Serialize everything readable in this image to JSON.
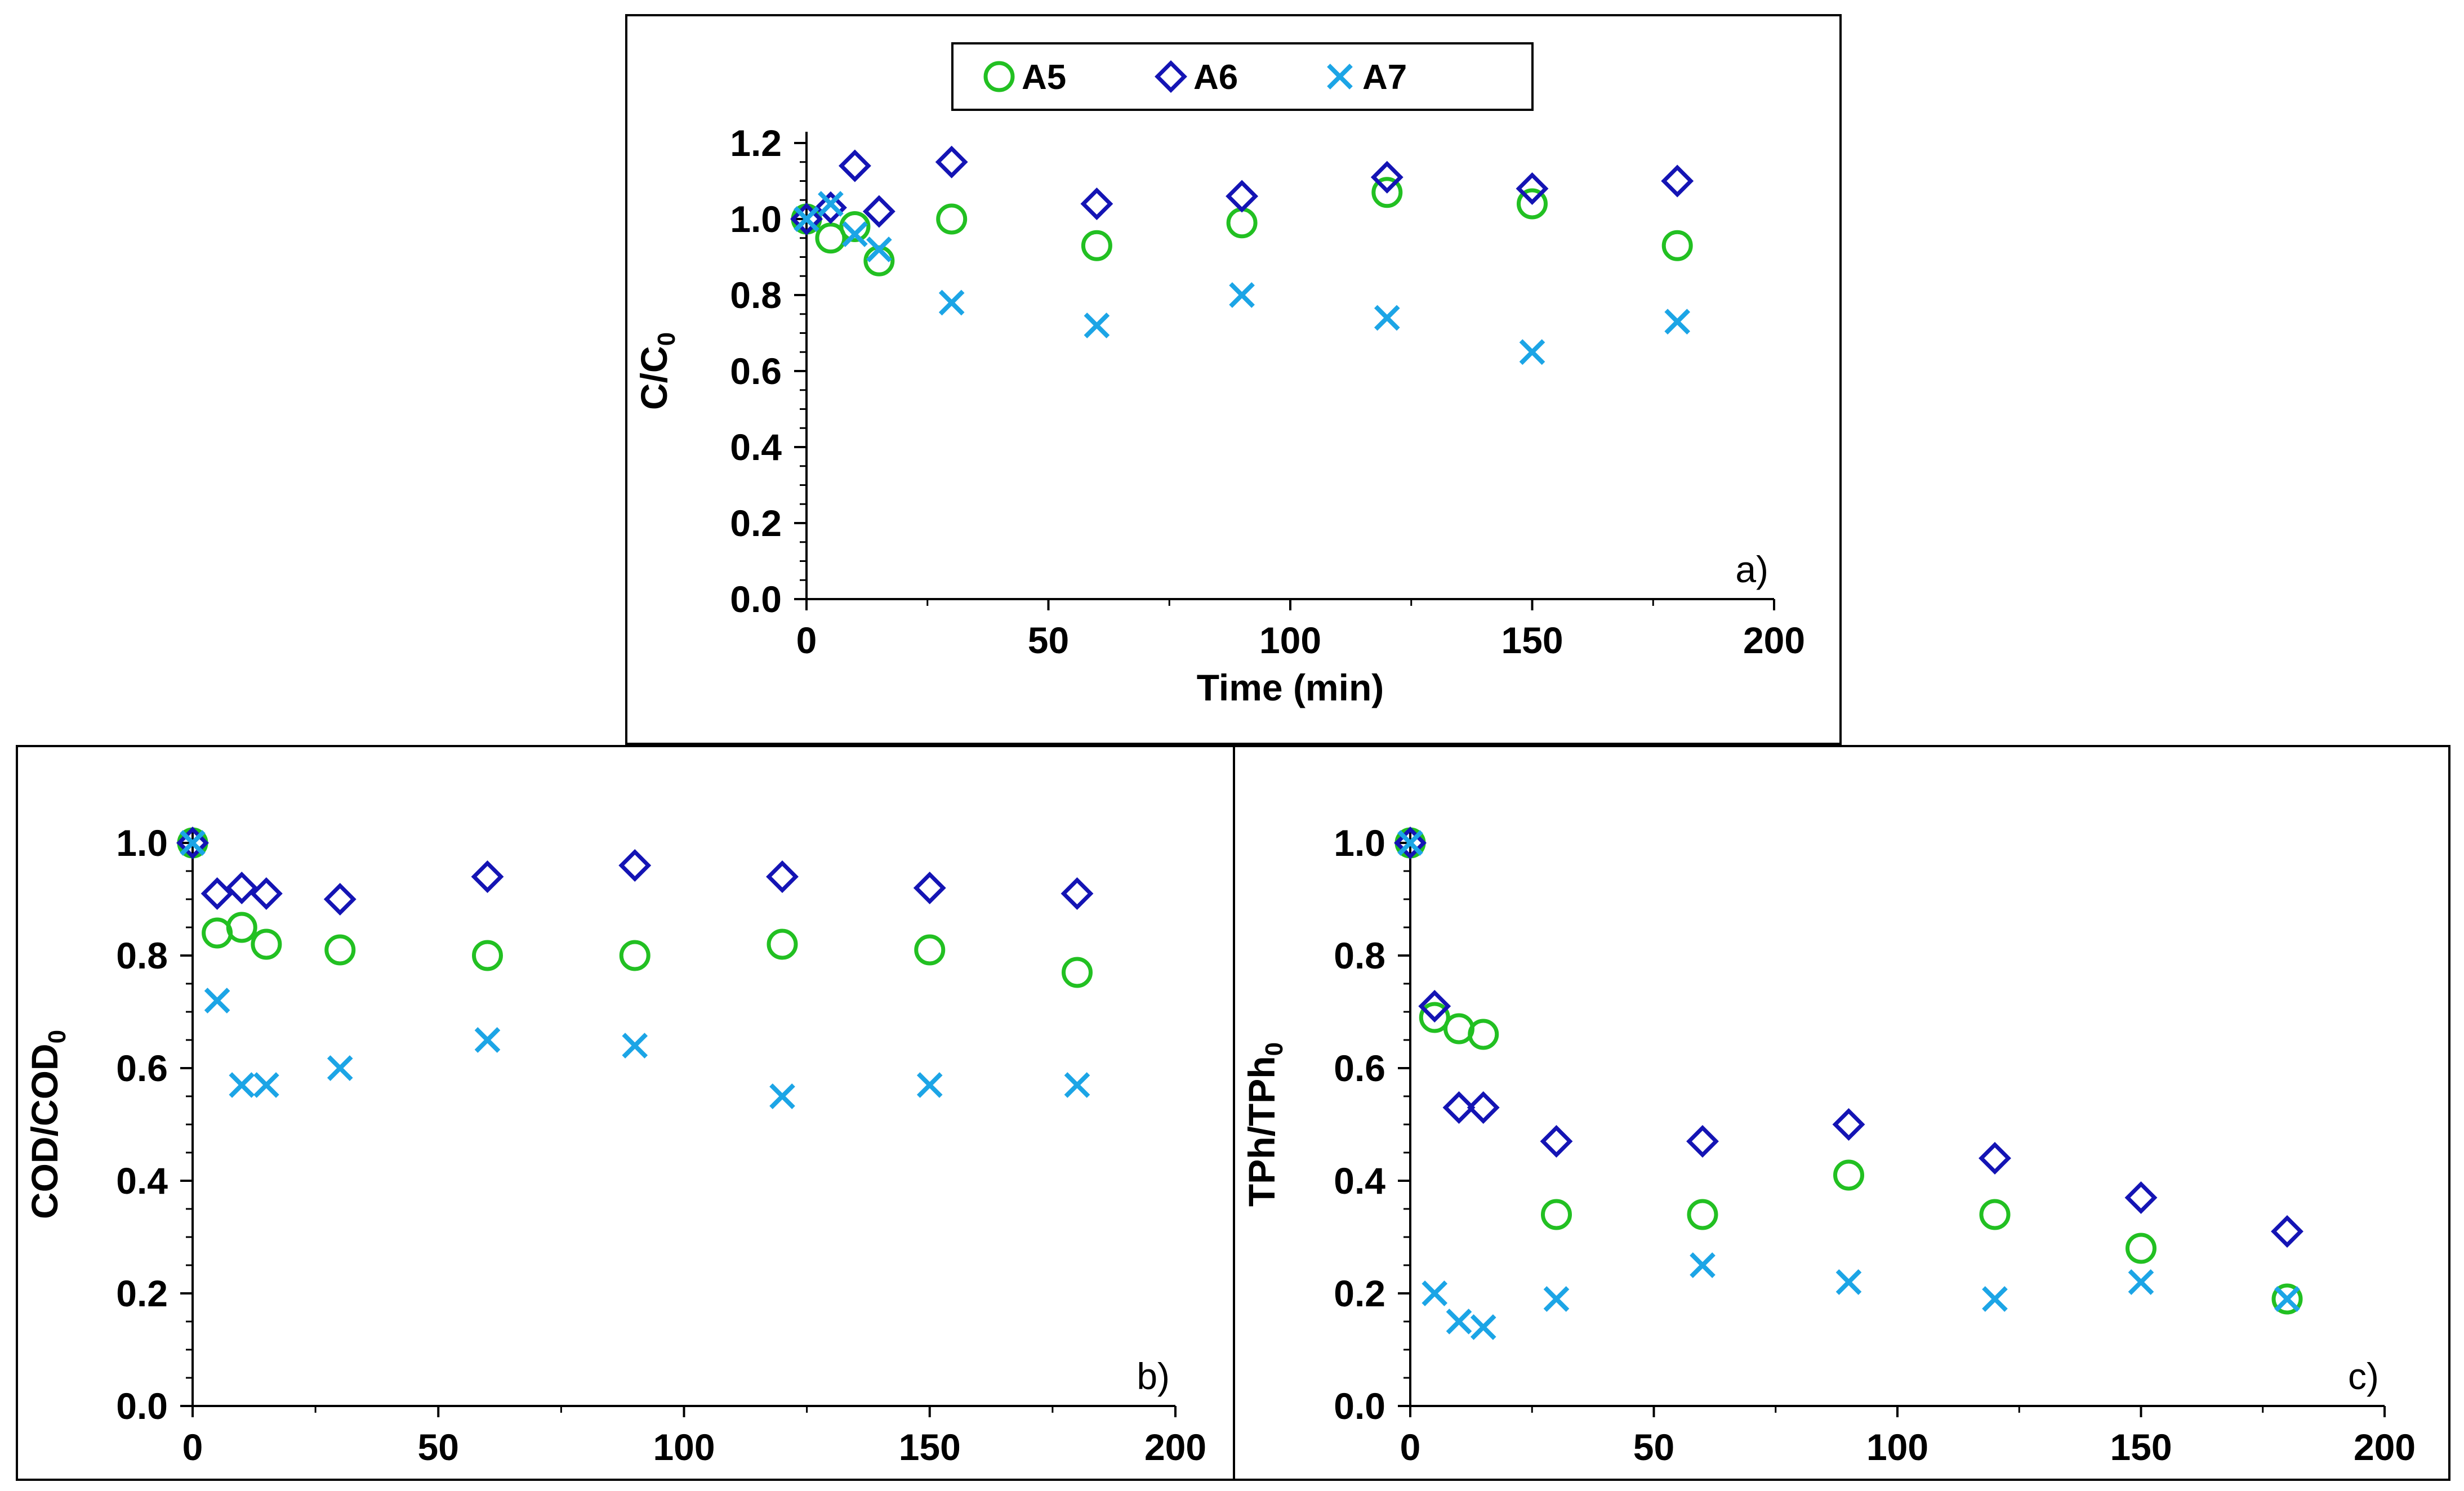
{
  "colors": {
    "A5": "#22c022",
    "A6": "#1414b4",
    "A7": "#1ca5e6",
    "axis": "#000000"
  },
  "legend": {
    "items": [
      {
        "label": "A5",
        "marker": "circle",
        "color": "#22c022"
      },
      {
        "label": "A6",
        "marker": "diamond",
        "color": "#1414b4"
      },
      {
        "label": "A7",
        "marker": "x",
        "color": "#1ca5e6"
      }
    ]
  },
  "chart_data": [
    {
      "id": "a",
      "type": "scatter",
      "panel_label": "a)",
      "xlabel": "Time (min)",
      "ylabel": "C/C0",
      "ylabel_main": "C/C",
      "ylabel_sub": "0",
      "xlim": [
        0,
        200
      ],
      "ylim": [
        0.0,
        1.2
      ],
      "xticks": [
        0,
        50,
        100,
        150,
        200
      ],
      "xtick_labels": [
        "0",
        "50",
        "100",
        "150",
        "200"
      ],
      "yticks": [
        0.0,
        0.2,
        0.4,
        0.6,
        0.8,
        1.0,
        1.2
      ],
      "ytick_labels": [
        "0.0",
        "0.2",
        "0.4",
        "0.6",
        "0.8",
        "1.0",
        "1.2"
      ],
      "legend_position": "top-center",
      "series": [
        {
          "name": "A5",
          "marker": "circle",
          "x": [
            0,
            5,
            10,
            15,
            30,
            60,
            90,
            120,
            150,
            180
          ],
          "y": [
            1.0,
            0.95,
            0.98,
            0.89,
            1.0,
            0.93,
            0.99,
            1.07,
            1.04,
            0.93
          ]
        },
        {
          "name": "A6",
          "marker": "diamond",
          "x": [
            0,
            5,
            10,
            15,
            30,
            60,
            90,
            120,
            150,
            180
          ],
          "y": [
            1.0,
            1.03,
            1.14,
            1.02,
            1.15,
            1.04,
            1.06,
            1.11,
            1.08,
            1.1
          ]
        },
        {
          "name": "A7",
          "marker": "x",
          "x": [
            0,
            5,
            10,
            15,
            30,
            60,
            90,
            120,
            150,
            180
          ],
          "y": [
            1.0,
            1.04,
            0.96,
            0.92,
            0.78,
            0.72,
            0.8,
            0.74,
            0.65,
            0.73
          ]
        }
      ]
    },
    {
      "id": "b",
      "type": "scatter",
      "panel_label": "b)",
      "xlabel": "Time (min)",
      "ylabel": "COD/COD0",
      "ylabel_main": "COD/COD",
      "ylabel_sub": "0",
      "xlim": [
        0,
        200
      ],
      "ylim": [
        0.0,
        1.0
      ],
      "xticks": [
        0,
        50,
        100,
        150,
        200
      ],
      "xtick_labels": [
        "0",
        "50",
        "100",
        "150",
        "200"
      ],
      "yticks": [
        0.0,
        0.2,
        0.4,
        0.6,
        0.8,
        1.0
      ],
      "ytick_labels": [
        "0.0",
        "0.2",
        "0.4",
        "0.6",
        "0.8",
        "1.0"
      ],
      "series": [
        {
          "name": "A5",
          "marker": "circle",
          "x": [
            0,
            5,
            10,
            15,
            30,
            60,
            90,
            120,
            150,
            180
          ],
          "y": [
            1.0,
            0.84,
            0.85,
            0.82,
            0.81,
            0.8,
            0.8,
            0.82,
            0.81,
            0.77
          ]
        },
        {
          "name": "A6",
          "marker": "diamond",
          "x": [
            0,
            5,
            10,
            15,
            30,
            60,
            90,
            120,
            150,
            180
          ],
          "y": [
            1.0,
            0.91,
            0.92,
            0.91,
            0.9,
            0.94,
            0.96,
            0.94,
            0.92,
            0.91
          ]
        },
        {
          "name": "A7",
          "marker": "x",
          "x": [
            0,
            5,
            10,
            15,
            30,
            60,
            90,
            120,
            150,
            180
          ],
          "y": [
            1.0,
            0.72,
            0.57,
            0.57,
            0.6,
            0.65,
            0.64,
            0.55,
            0.57,
            0.57
          ]
        }
      ]
    },
    {
      "id": "c",
      "type": "scatter",
      "panel_label": "c)",
      "xlabel": "Time (min)",
      "ylabel": "TPh/TPh0",
      "ylabel_main": "TPh/TPh",
      "ylabel_sub": "0",
      "xlim": [
        0,
        200
      ],
      "ylim": [
        0.0,
        1.0
      ],
      "xticks": [
        0,
        50,
        100,
        150,
        200
      ],
      "xtick_labels": [
        "0",
        "50",
        "100",
        "150",
        "200"
      ],
      "yticks": [
        0.0,
        0.2,
        0.4,
        0.6,
        0.8,
        1.0
      ],
      "ytick_labels": [
        "0.0",
        "0.2",
        "0.4",
        "0.6",
        "0.8",
        "1.0"
      ],
      "series": [
        {
          "name": "A5",
          "marker": "circle",
          "x": [
            0,
            5,
            10,
            15,
            30,
            60,
            90,
            120,
            150,
            180
          ],
          "y": [
            1.0,
            0.69,
            0.67,
            0.66,
            0.34,
            0.34,
            0.41,
            0.34,
            0.28,
            0.19
          ]
        },
        {
          "name": "A6",
          "marker": "diamond",
          "x": [
            0,
            5,
            10,
            15,
            30,
            60,
            90,
            120,
            150,
            180
          ],
          "y": [
            1.0,
            0.71,
            0.53,
            0.53,
            0.47,
            0.47,
            0.5,
            0.44,
            0.37,
            0.31
          ]
        },
        {
          "name": "A7",
          "marker": "x",
          "x": [
            0,
            5,
            10,
            15,
            30,
            60,
            90,
            120,
            150,
            180
          ],
          "y": [
            1.0,
            0.2,
            0.15,
            0.14,
            0.19,
            0.25,
            0.22,
            0.19,
            0.22,
            0.19
          ]
        }
      ]
    }
  ]
}
